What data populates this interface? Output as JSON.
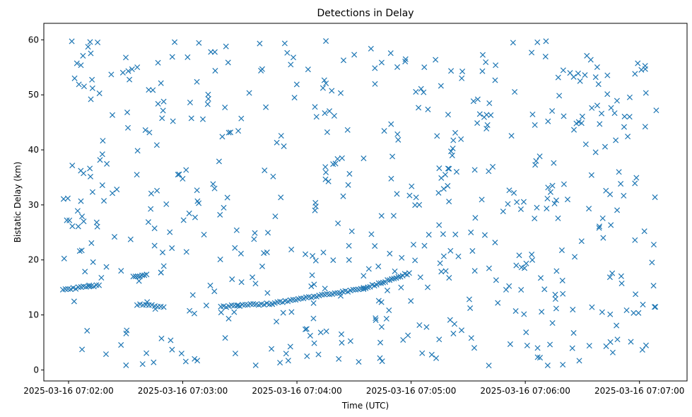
{
  "chart_data": {
    "type": "scatter",
    "title": "Detections in Delay",
    "xlabel": "Time (UTC)",
    "ylabel": "Bistatic Delay (km)",
    "marker": "x",
    "color": "#1f77b4",
    "grid": false,
    "x_type": "datetime",
    "xlim": [
      "2025-03-16 07:01:47",
      "2025-03-16 07:07:25"
    ],
    "ylim": [
      -2,
      63
    ],
    "x_ticks": [
      "2025-03-16 07:02:00",
      "2025-03-16 07:03:00",
      "2025-03-16 07:04:00",
      "2025-03-16 07:05:00",
      "2025-03-16 07:06:00",
      "2025-03-16 07:07:00"
    ],
    "y_ticks": [
      "0",
      "10",
      "20",
      "30",
      "40",
      "50",
      "60"
    ],
    "tracks": [
      {
        "x_start": "2025-03-16 07:01:57",
        "x_end": "2025-03-16 07:02:16",
        "y_start": 14.6,
        "y_end": 15.4,
        "n": 15
      },
      {
        "x_start": "2025-03-16 07:02:34",
        "x_end": "2025-03-16 07:02:41",
        "y_start": 16.9,
        "y_end": 17.4,
        "n": 7
      },
      {
        "x_start": "2025-03-16 07:02:36",
        "x_end": "2025-03-16 07:02:50",
        "y_start": 11.9,
        "y_end": 11.5,
        "n": 10
      },
      {
        "x_start": "2025-03-16 07:03:20",
        "x_end": "2025-03-16 07:03:47",
        "y_start": 11.5,
        "y_end": 12.1,
        "n": 20
      },
      {
        "x_start": "2025-03-16 07:03:47",
        "x_end": "2025-03-16 07:04:35",
        "y_start": 12.1,
        "y_end": 14.8,
        "n": 36
      },
      {
        "x_start": "2025-03-16 07:04:35",
        "x_end": "2025-03-16 07:04:59",
        "y_start": 14.8,
        "y_end": 17.6,
        "n": 22
      }
    ],
    "clutter": {
      "n": 560,
      "x_start": "2025-03-16 07:01:57",
      "x_end": "2025-03-16 07:07:09",
      "y_min": 0.8,
      "y_max": 59.8,
      "distribution": "uniform random"
    }
  }
}
